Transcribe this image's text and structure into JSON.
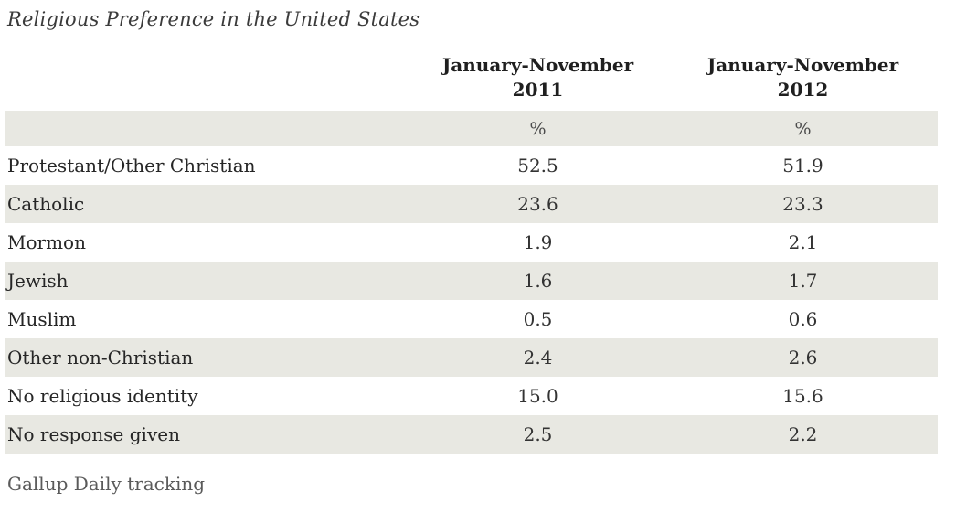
{
  "title": "Religious Preference in the United States",
  "table": {
    "columns": [
      {
        "line1": "January-November",
        "line2": "2011"
      },
      {
        "line1": "January-November",
        "line2": "2012"
      }
    ],
    "unit_row": {
      "col2011": "%",
      "col2012": "%"
    },
    "rows": [
      {
        "label": "Protestant/Other Christian",
        "y2011": "52.5",
        "y2012": "51.9"
      },
      {
        "label": "Catholic",
        "y2011": "23.6",
        "y2012": "23.3"
      },
      {
        "label": "Mormon",
        "y2011": "1.9",
        "y2012": "2.1"
      },
      {
        "label": "Jewish",
        "y2011": "1.6",
        "y2012": "1.7"
      },
      {
        "label": "Muslim",
        "y2011": "0.5",
        "y2012": "0.6"
      },
      {
        "label": "Other non-Christian",
        "y2011": "2.4",
        "y2012": "2.6"
      },
      {
        "label": "No religious identity",
        "y2011": "15.0",
        "y2012": "15.6"
      },
      {
        "label": "No response given",
        "y2011": "2.5",
        "y2012": "2.2"
      }
    ]
  },
  "footer": "Gallup Daily tracking",
  "colors": {
    "stripe": "#e8e8e2",
    "title_text": "#3b3b3b",
    "body_text": "#2e2e2e",
    "muted_text": "#5a5a5a"
  },
  "chart_data": {
    "type": "table",
    "title": "Religious Preference in the United States",
    "categories": [
      "Protestant/Other Christian",
      "Catholic",
      "Mormon",
      "Jewish",
      "Muslim",
      "Other non-Christian",
      "No religious identity",
      "No response given"
    ],
    "series": [
      {
        "name": "January-November 2011",
        "values": [
          52.5,
          23.6,
          1.9,
          1.6,
          0.5,
          2.4,
          15.0,
          2.5
        ]
      },
      {
        "name": "January-November 2012",
        "values": [
          51.9,
          23.3,
          2.1,
          1.7,
          0.6,
          2.6,
          15.6,
          2.2
        ]
      }
    ],
    "unit": "%",
    "annotations": [
      "Gallup Daily tracking"
    ],
    "layout": {
      "stripes": "alternating rows starting with unit row",
      "value_alignment": "center"
    }
  }
}
